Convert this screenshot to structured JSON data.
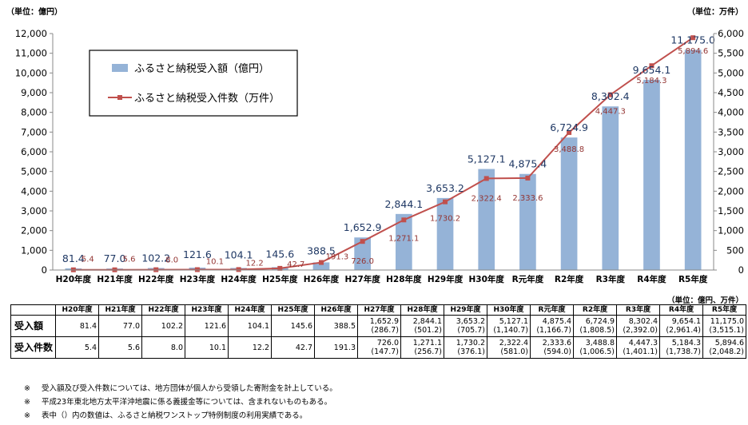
{
  "units": {
    "left": "（単位：億円）",
    "right": "（単位：万件）",
    "table": "（単位：億円、万件）"
  },
  "chart_data": {
    "type": "bar+line",
    "categories": [
      "H20年度",
      "H21年度",
      "H22年度",
      "H23年度",
      "H24年度",
      "H25年度",
      "H26年度",
      "H27年度",
      "H28年度",
      "H29年度",
      "H30年度",
      "R元年度",
      "R2年度",
      "R3年度",
      "R4年度",
      "R5年度"
    ],
    "series": [
      {
        "name": "ふるさと納税受入額（億円）",
        "type": "bar",
        "axis": "left",
        "color": "#95b3d7",
        "values": [
          81.4,
          77.0,
          102.2,
          121.6,
          104.1,
          145.6,
          388.5,
          1652.9,
          2844.1,
          3653.2,
          5127.1,
          4875.4,
          6724.9,
          8302.4,
          9654.1,
          11175.0
        ],
        "labels": [
          "81.4",
          "77.0",
          "102.2",
          "121.6",
          "104.1",
          "145.6",
          "388.5",
          "1,652.9",
          "2,844.1",
          "3,653.2",
          "5,127.1",
          "4,875.4",
          "6,724.9",
          "8,302.4",
          "9,654.1",
          "11,175.0"
        ]
      },
      {
        "name": "ふるさと納税受入件数（万件）",
        "type": "line",
        "axis": "right",
        "color": "#c0504d",
        "values": [
          5.4,
          5.6,
          8.0,
          10.1,
          12.2,
          42.7,
          191.3,
          726.0,
          1271.1,
          1730.2,
          2322.4,
          2333.6,
          3488.8,
          4447.3,
          5184.3,
          5894.6
        ],
        "labels": [
          "5.4",
          "5.6",
          "8.0",
          "10.1",
          "12.2",
          "42.7",
          "191.3",
          "726.0",
          "1,271.1",
          "1,730.2",
          "2,322.4",
          "2,333.6",
          "3,488.8",
          "4,447.3",
          "5,184.3",
          "5,894.6"
        ]
      }
    ],
    "y_left": {
      "min": 0,
      "max": 12000,
      "step": 1000,
      "ticks": [
        "0",
        "1,000",
        "2,000",
        "3,000",
        "4,000",
        "5,000",
        "6,000",
        "7,000",
        "8,000",
        "9,000",
        "10,000",
        "11,000",
        "12,000"
      ]
    },
    "y_right": {
      "min": 0,
      "max": 6000,
      "step": 500,
      "ticks": [
        "0",
        "500",
        "1,000",
        "1,500",
        "2,000",
        "2,500",
        "3,000",
        "3,500",
        "4,000",
        "4,500",
        "5,000",
        "5,500",
        "6,000"
      ]
    },
    "legend": {
      "position": "top-left"
    }
  },
  "table": {
    "row_labels": [
      "受入額",
      "受入件数"
    ],
    "amount": [
      "81.4",
      "77.0",
      "102.2",
      "121.6",
      "104.1",
      "145.6",
      "388.5",
      "1,652.9",
      "2,844.1",
      "3,653.2",
      "5,127.1",
      "4,875.4",
      "6,724.9",
      "8,302.4",
      "9,654.1",
      "11,175.0"
    ],
    "amount_sub": [
      "",
      "",
      "",
      "",
      "",
      "",
      "",
      "(286.7)",
      "(501.2)",
      "(705.7)",
      "(1,140.7)",
      "(1,166.7)",
      "(1,808.5)",
      "(2,392.0)",
      "(2,961.4)",
      "(3,515.1)"
    ],
    "count": [
      "5.4",
      "5.6",
      "8.0",
      "10.1",
      "12.2",
      "42.7",
      "191.3",
      "726.0",
      "1,271.1",
      "1,730.2",
      "2,322.4",
      "2,333.6",
      "3,488.8",
      "4,447.3",
      "5,184.3",
      "5,894.6"
    ],
    "count_sub": [
      "",
      "",
      "",
      "",
      "",
      "",
      "",
      "(147.7)",
      "(256.7)",
      "(376.1)",
      "(581.0)",
      "(594.0)",
      "(1,006.5)",
      "(1,401.1)",
      "(1,738.7)",
      "(2,048.2)"
    ]
  },
  "notes": [
    {
      "mark": "※",
      "text": "受入額及び受入件数については、地方団体が個人から受領した寄附金を計上している。"
    },
    {
      "mark": "※",
      "text": "平成23年東北地方太平洋沖地震に係る義援金等については、含まれないものもある。"
    },
    {
      "mark": "※",
      "text": "表中（）内の数値は、ふるさと納税ワンストップ特例制度の利用実績である。"
    }
  ]
}
